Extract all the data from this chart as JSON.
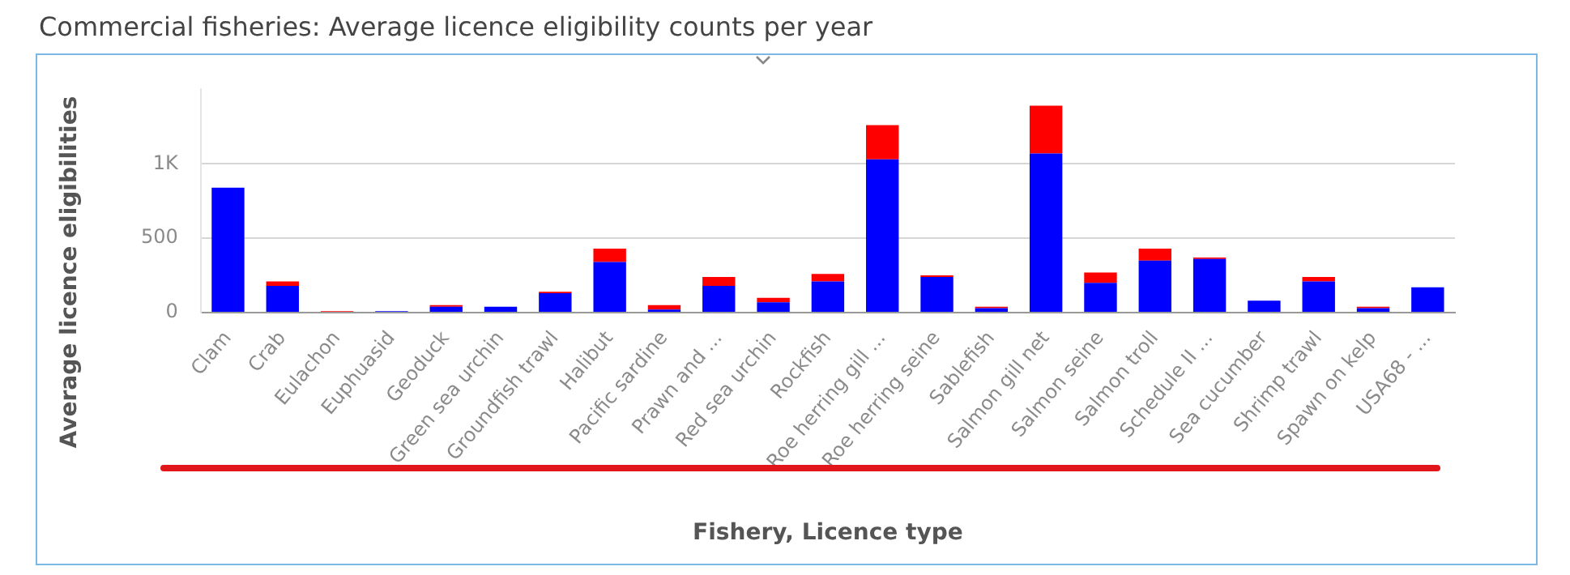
{
  "chart_data": {
    "type": "bar",
    "title": "Commercial fisheries: Average licence eligibility counts per year",
    "xlabel": "Fishery, Licence type",
    "ylabel": "Average licence eligibilities",
    "categories": [
      "Clam",
      "Crab",
      "Eulachon",
      "Euphuasid",
      "Geoduck",
      "Green sea urchin",
      "Groundfish trawl",
      "Halibut",
      "Pacific sardine",
      "Prawn and ...",
      "Red sea urchin",
      "Rockfish",
      "Roe herring gill ...",
      "Roe herring seine",
      "Sablefish",
      "Salmon gill net",
      "Salmon seine",
      "Salmon troll",
      "Schedule II ...",
      "Sea cucumber",
      "Shrimp trawl",
      "Spawn on kelp",
      "USA68 - ..."
    ],
    "series": [
      {
        "color": "#0000ff",
        "values": [
          840,
          180,
          0,
          10,
          40,
          40,
          130,
          340,
          20,
          180,
          70,
          210,
          1030,
          240,
          30,
          1070,
          200,
          350,
          360,
          80,
          210,
          30,
          170
        ]
      },
      {
        "color": "#ff0000",
        "values": [
          0,
          30,
          10,
          0,
          10,
          0,
          10,
          90,
          30,
          60,
          30,
          50,
          230,
          10,
          10,
          320,
          70,
          80,
          10,
          0,
          30,
          10,
          0
        ]
      }
    ],
    "stacked": true,
    "ylim": [
      0,
      1500
    ],
    "yticks": [
      0,
      500,
      {
        "value": 1000,
        "label": "1K"
      }
    ],
    "grid": "y",
    "legend": false
  }
}
